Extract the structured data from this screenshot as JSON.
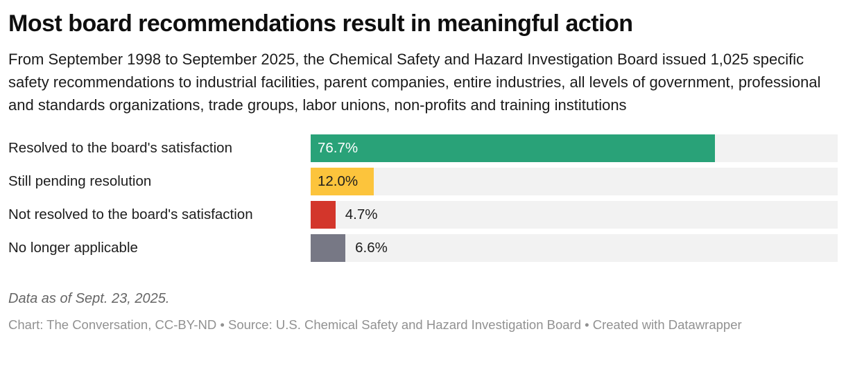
{
  "header": {
    "title": "Most board recommendations result in meaningful action",
    "subtitle": "From September 1998 to September 2025, the Chemical Safety and Hazard Investigation Board issued 1,025 specific safety recommendations to industrial facilities, parent companies, entire industries, all levels of government, professional and standards organizations, trade groups, labor unions, non-profits and training institutions"
  },
  "chart_data": {
    "type": "bar",
    "orientation": "horizontal",
    "title": "Most board recommendations result in meaningful action",
    "categories": [
      "Resolved to the board's satisfaction",
      "Still pending resolution",
      "Not resolved to the board's satisfaction",
      "No longer applicable"
    ],
    "values": [
      76.7,
      12.0,
      4.7,
      6.6
    ],
    "value_labels": [
      "76.7%",
      "12.0%",
      "4.7%",
      "6.6%"
    ],
    "bar_colors": [
      "#29a278",
      "#fcc43c",
      "#d3362b",
      "#777885"
    ],
    "label_position": [
      "inside",
      "inside",
      "outside",
      "outside"
    ],
    "label_text_colors": [
      "#ffffff",
      "#1d1d1d",
      "#1d1d1d",
      "#1d1d1d"
    ],
    "track_color": "#f2f2f2",
    "xlim": [
      0,
      100
    ],
    "xlabel": "",
    "ylabel": "",
    "grid": false,
    "legend": "none"
  },
  "footer": {
    "note": "Data as of Sept. 23, 2025.",
    "credits": "Chart: The Conversation, CC-BY-ND • Source: U.S. Chemical Safety and Hazard Investigation Board • Created with Datawrapper"
  }
}
